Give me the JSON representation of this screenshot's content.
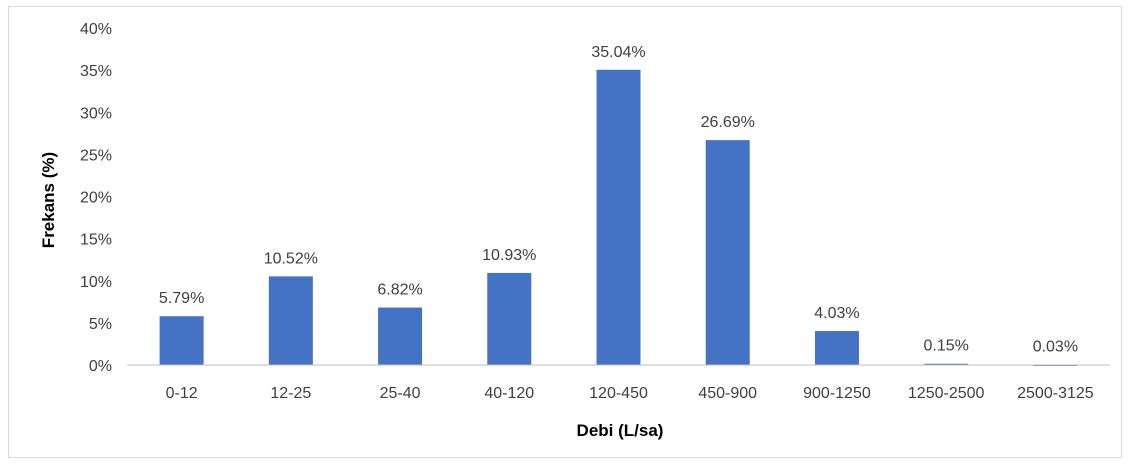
{
  "chart_data": {
    "type": "bar",
    "categories": [
      "0-12",
      "12-25",
      "25-40",
      "40-120",
      "120-450",
      "450-900",
      "900-1250",
      "1250-2500",
      "2500-3125"
    ],
    "values": [
      5.79,
      10.52,
      6.82,
      10.93,
      35.04,
      26.69,
      4.03,
      0.15,
      0.03
    ],
    "data_labels": [
      "5.79%",
      "10.52%",
      "6.82%",
      "10.93%",
      "35.04%",
      "26.69%",
      "4.03%",
      "0.15%",
      "0.03%"
    ],
    "title": "",
    "xlabel": "Debi (L/sa)",
    "ylabel": "Frekans (%)",
    "ylim": [
      0,
      40
    ],
    "y_ticks": [
      "0%",
      "5%",
      "10%",
      "15%",
      "20%",
      "25%",
      "30%",
      "35%",
      "40%"
    ],
    "grid": false,
    "legend": "none",
    "colors": {
      "bar": "#4472C4",
      "axis": "#bfbfbf",
      "text": "#404040"
    }
  }
}
